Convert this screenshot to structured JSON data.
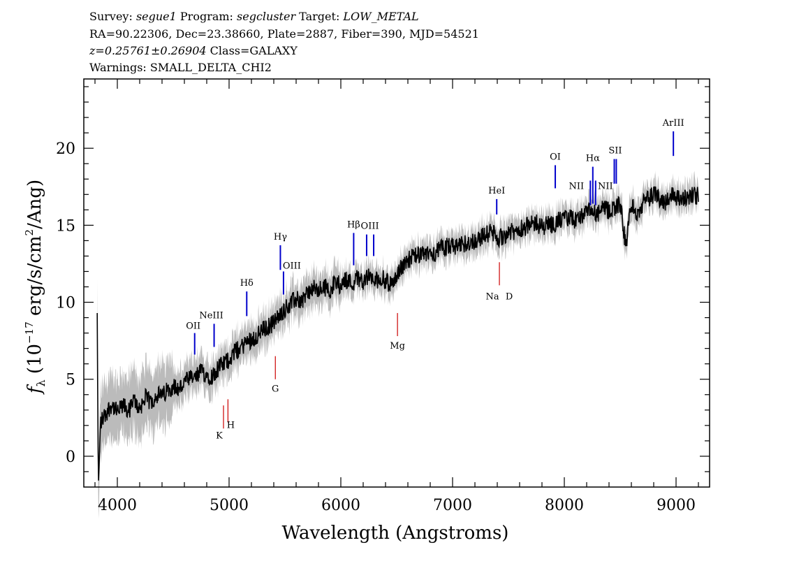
{
  "header": {
    "line1": [
      {
        "t": "Survey: ",
        "i": false
      },
      {
        "t": "segue1",
        "i": true
      },
      {
        "t": " Program: ",
        "i": false
      },
      {
        "t": "segcluster",
        "i": true
      },
      {
        "t": " Target: ",
        "i": false
      },
      {
        "t": "LOW_METAL",
        "i": true
      }
    ],
    "line2": "RA=90.22306, Dec=23.38660, Plate=2887, Fiber=390, MJD=54521",
    "line3": [
      {
        "t": "z=0.25761±0.26904",
        "i": true
      },
      {
        "t": " Class=GALAXY",
        "i": false
      }
    ],
    "line4": "Warnings: SMALL_DELTA_CHI2"
  },
  "chart_data": {
    "type": "line",
    "xlabel": "Wavelength (Angstroms)",
    "ylabel": "f_λ (10^-17 erg/s/cm^2/Ang)",
    "ylabel_parts": {
      "f": "f",
      "lambda": "λ",
      "pre": " (10",
      "exp1": "−17",
      "mid": " erg/s/cm",
      "exp2": "2",
      "post": "/Ang)"
    },
    "xlim": [
      3700,
      9300
    ],
    "ylim": [
      -2,
      24.5
    ],
    "x_ticks": [
      4000,
      5000,
      6000,
      7000,
      8000,
      9000
    ],
    "y_ticks": [
      0,
      5,
      10,
      15,
      20
    ],
    "colors": {
      "flux": "#000000",
      "error_band": "#bbbbbb",
      "emission": "#0000cc",
      "absorption": "#cc0000"
    },
    "series": [
      {
        "role": "flux",
        "x": [
          3820,
          3830,
          3850,
          3900,
          3950,
          4000,
          4050,
          4100,
          4150,
          4200,
          4250,
          4300,
          4350,
          4400,
          4450,
          4500,
          4550,
          4600,
          4650,
          4700,
          4750,
          4800,
          4850,
          4900,
          4950,
          5000,
          5050,
          5100,
          5150,
          5200,
          5250,
          5300,
          5350,
          5400,
          5450,
          5500,
          5550,
          5600,
          5650,
          5700,
          5750,
          5800,
          5850,
          5900,
          5950,
          6000,
          6050,
          6100,
          6150,
          6200,
          6250,
          6300,
          6350,
          6400,
          6450,
          6500,
          6550,
          6600,
          6650,
          6700,
          6750,
          6800,
          6850,
          6900,
          6950,
          7000,
          7050,
          7100,
          7150,
          7200,
          7250,
          7300,
          7350,
          7400,
          7450,
          7500,
          7550,
          7600,
          7650,
          7700,
          7750,
          7800,
          7850,
          7900,
          7950,
          8000,
          8050,
          8100,
          8150,
          8200,
          8250,
          8300,
          8350,
          8400,
          8450,
          8500,
          8550,
          8600,
          8650,
          8700,
          8750,
          8800,
          8850,
          8900,
          8950,
          9000,
          9050,
          9100,
          9150,
          9200
        ],
        "y": [
          9.3,
          -2.0,
          2.2,
          2.8,
          3.4,
          2.8,
          3.3,
          2.9,
          3.6,
          3.1,
          3.8,
          3.5,
          4.0,
          3.9,
          4.3,
          4.6,
          4.3,
          4.8,
          5.0,
          5.1,
          5.5,
          5.3,
          5.2,
          5.7,
          6.0,
          6.3,
          6.8,
          7.0,
          7.4,
          7.6,
          7.8,
          8.2,
          8.4,
          8.7,
          9.1,
          9.6,
          9.9,
          10.2,
          10.1,
          10.6,
          10.9,
          10.7,
          11.0,
          10.8,
          11.3,
          11.1,
          11.5,
          11.2,
          11.6,
          11.4,
          11.7,
          11.3,
          11.6,
          11.4,
          11.1,
          11.8,
          12.3,
          12.8,
          12.9,
          13.1,
          13.0,
          13.3,
          13.2,
          13.5,
          13.6,
          13.7,
          13.5,
          13.8,
          13.9,
          14.0,
          14.2,
          14.4,
          14.6,
          14.1,
          14.3,
          14.6,
          14.5,
          14.8,
          14.9,
          15.0,
          15.2,
          14.8,
          15.2,
          15.0,
          15.3,
          15.4,
          15.5,
          15.3,
          15.6,
          15.8,
          15.9,
          15.7,
          16.1,
          15.9,
          16.2,
          16.4,
          13.6,
          16.5,
          15.5,
          16.4,
          16.7,
          17.0,
          16.8,
          16.5,
          17.0,
          16.9,
          16.6,
          16.8,
          17.0,
          16.9
        ]
      }
    ],
    "lines": [
      {
        "label": "OII",
        "x": 4692,
        "kind": "emission",
        "ytop": 8.0,
        "ybot": 6.6
      },
      {
        "label": "NeIII",
        "x": 4866,
        "kind": "emission",
        "ytop": 8.6,
        "ybot": 7.1
      },
      {
        "label": "Hδ",
        "x": 5158,
        "kind": "emission",
        "ytop": 10.7,
        "ybot": 9.1
      },
      {
        "label": "Hγ",
        "x": 5459,
        "kind": "emission",
        "ytop": 13.7,
        "ybot": 12.1
      },
      {
        "label": "OIII",
        "x": 5487,
        "kind": "emission",
        "ytop": 12.0,
        "ybot": 10.5
      },
      {
        "label": "Hβ",
        "x": 6115,
        "kind": "emission",
        "ytop": 14.5,
        "ybot": 12.4
      },
      {
        "label": "OIII",
        "x": 6231,
        "kind": "emission",
        "ytop": 14.4,
        "ybot": 13.0
      },
      {
        "label": "OIII",
        "x": 6294,
        "kind": "emission",
        "ytop": 14.4,
        "ybot": 13.0
      },
      {
        "label": "HeI",
        "x": 7395,
        "kind": "emission",
        "ytop": 16.7,
        "ybot": 15.7
      },
      {
        "label": "OI",
        "x": 7919,
        "kind": "emission",
        "ytop": 18.9,
        "ybot": 17.4
      },
      {
        "label": "NII",
        "x": 8233,
        "kind": "emission",
        "ytop": 17.9,
        "ybot": 16.3
      },
      {
        "label": "Hα",
        "x": 8255,
        "kind": "emission",
        "ytop": 18.8,
        "ybot": 16.4
      },
      {
        "label": "NII",
        "x": 8280,
        "kind": "emission",
        "ytop": 17.9,
        "ybot": 16.3
      },
      {
        "label": "SII",
        "x": 8447,
        "kind": "emission",
        "ytop": 19.3,
        "ybot": 17.7
      },
      {
        "label": "SII",
        "x": 8465,
        "kind": "emission",
        "ytop": 19.3,
        "ybot": 17.7
      },
      {
        "label": "ArIII",
        "x": 8976,
        "kind": "emission",
        "ytop": 21.1,
        "ybot": 19.5
      },
      {
        "label": "K",
        "x": 4950,
        "kind": "absorption",
        "ytop": 3.3,
        "ybot": 1.8
      },
      {
        "label": "H",
        "x": 4990,
        "kind": "absorption",
        "ytop": 3.7,
        "ybot": 2.2
      },
      {
        "label": "G",
        "x": 5414,
        "kind": "absorption",
        "ytop": 6.5,
        "ybot": 5.0
      },
      {
        "label": "Mg",
        "x": 6507,
        "kind": "absorption",
        "ytop": 9.3,
        "ybot": 7.8
      },
      {
        "label": "Na",
        "x": 7419,
        "kind": "absorption",
        "ytop": 12.6,
        "ybot": 11.1
      },
      {
        "label": "D",
        "x": 7419,
        "kind": "absorption",
        "ytop": 12.6,
        "ybot": 11.1
      }
    ]
  }
}
